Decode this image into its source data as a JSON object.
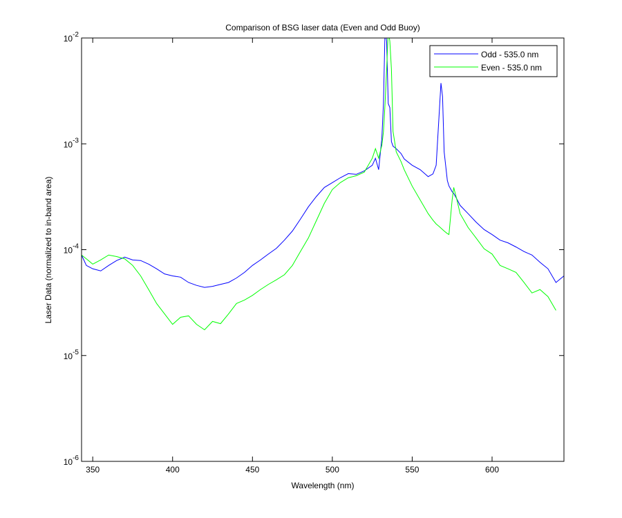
{
  "chart_data": {
    "type": "line",
    "title": "Comparison of BSG laser data (Even and Odd Buoy)",
    "x_label": "Wavelength (nm)",
    "y_label": "Laser Data (normalized to in-band area)",
    "x": [
      343,
      346,
      350,
      355,
      360,
      365,
      370,
      375,
      380,
      385,
      390,
      395,
      400,
      405,
      410,
      415,
      420,
      425,
      430,
      435,
      440,
      445,
      450,
      455,
      460,
      465,
      470,
      475,
      480,
      485,
      490,
      495,
      500,
      505,
      510,
      515,
      520,
      525,
      527,
      529,
      531,
      532,
      533,
      534,
      535,
      536,
      537,
      538,
      540,
      543,
      545,
      550,
      555,
      560,
      563,
      565,
      567,
      568,
      569,
      570,
      572,
      573,
      575,
      576,
      578,
      580,
      585,
      590,
      595,
      600,
      605,
      610,
      615,
      620,
      625,
      630,
      635,
      640,
      645
    ],
    "series": [
      {
        "name": "Odd - 535.0 nm",
        "color": "#0000ff",
        "values": [
          8.9e-05,
          7.1e-05,
          6.6e-05,
          6.3e-05,
          7.1e-05,
          7.9e-05,
          8.5e-05,
          8e-05,
          7.9e-05,
          7.3e-05,
          6.6e-05,
          5.9e-05,
          5.65e-05,
          5.5e-05,
          4.9e-05,
          4.6e-05,
          4.4e-05,
          4.5e-05,
          4.7e-05,
          4.9e-05,
          5.4e-05,
          6.1e-05,
          7.1e-05,
          8e-05,
          9.1e-05,
          0.000103,
          0.000123,
          0.00015,
          0.000194,
          0.000254,
          0.000318,
          0.000387,
          0.00043,
          0.000478,
          0.000523,
          0.000515,
          0.000555,
          0.000627,
          0.00073,
          0.00057,
          0.00113,
          0.0024,
          0.012,
          0.0093,
          0.0024,
          0.0022,
          0.00105,
          0.00095,
          0.0009,
          0.00081,
          0.00072,
          0.000627,
          0.00057,
          0.00049,
          0.00052,
          0.000627,
          0.00206,
          0.00375,
          0.0028,
          0.00084,
          0.00045,
          0.0004,
          0.000353,
          0.00034,
          0.0003,
          0.000262,
          0.000219,
          0.000182,
          0.000155,
          0.000139,
          0.000123,
          0.000116,
          0.000106,
          9.6e-05,
          8.9e-05,
          7.6e-05,
          6.6e-05,
          4.9e-05,
          5.65e-05
        ]
      },
      {
        "name": "Even - 535.0 nm",
        "color": "#00ff00",
        "values": [
          8.9e-05,
          8.2e-05,
          7.3e-05,
          8e-05,
          8.9e-05,
          8.6e-05,
          8.2e-05,
          7.1e-05,
          5.65e-05,
          4.2e-05,
          3.1e-05,
          2.47e-05,
          1.97e-05,
          2.3e-05,
          2.37e-05,
          1.97e-05,
          1.75e-05,
          2.1e-05,
          2e-05,
          2.47e-05,
          3.1e-05,
          3.34e-05,
          3.7e-05,
          4.2e-05,
          4.7e-05,
          5.2e-05,
          5.8e-05,
          7.1e-05,
          9.6e-05,
          0.000129,
          0.000188,
          0.000274,
          0.00037,
          0.00043,
          0.000478,
          0.0005,
          0.00054,
          0.00073,
          0.0009,
          0.00073,
          0.00097,
          0.0013,
          0.0024,
          0.005,
          0.012,
          0.0093,
          0.00507,
          0.00131,
          0.00084,
          0.00068,
          0.00057,
          0.000398,
          0.000295,
          0.000219,
          0.00019,
          0.000175,
          0.000165,
          0.00016,
          0.000155,
          0.00015,
          0.000142,
          0.000139,
          0.000295,
          0.000387,
          0.000295,
          0.000219,
          0.000162,
          0.000129,
          0.000102,
          9.1e-05,
          7.1e-05,
          6.6e-05,
          6.1e-05,
          4.9e-05,
          3.9e-05,
          4.2e-05,
          3.6e-05,
          2.67e-05,
          null
        ]
      }
    ],
    "xlim": [
      343,
      645
    ],
    "xticks": [
      350,
      400,
      450,
      500,
      550,
      600
    ],
    "ylim": [
      1e-06,
      0.01
    ],
    "log_y": true,
    "yticks": [
      {
        "value": 1e-06,
        "label": "10-6"
      },
      {
        "value": 1e-05,
        "label": "10-5"
      },
      {
        "value": 0.0001,
        "label": "10-4"
      },
      {
        "value": 0.001,
        "label": "10-3"
      },
      {
        "value": 0.01,
        "label": "10-2"
      }
    ],
    "grid": false,
    "legend": "northeast"
  }
}
